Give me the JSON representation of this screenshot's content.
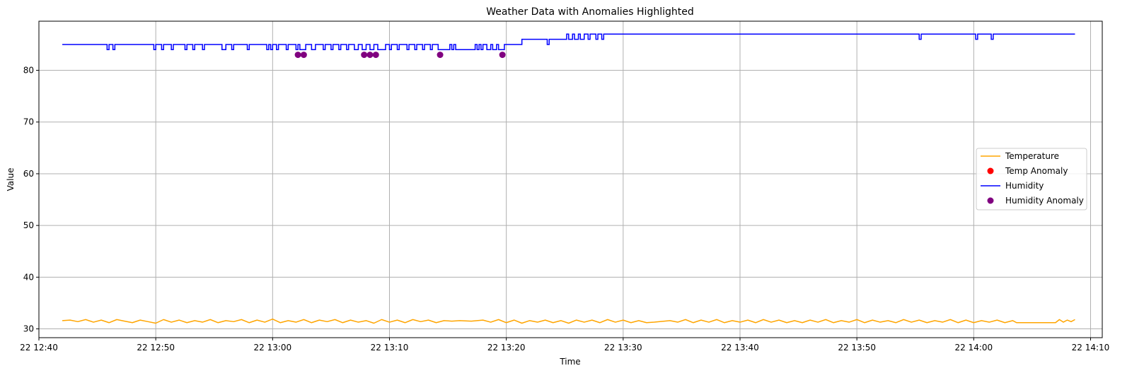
{
  "chart_data": {
    "type": "line",
    "title": "Weather Data with Anomalies Highlighted",
    "xlabel": "Time",
    "ylabel": "Value",
    "x_time_range": [
      "12:40:00",
      "14:11:00"
    ],
    "ylim": [
      28.3,
      89.5
    ],
    "x_ticks": [
      {
        "time": "12:40",
        "label": "22 12:40"
      },
      {
        "time": "12:50",
        "label": "22 12:50"
      },
      {
        "time": "13:00",
        "label": "22 13:00"
      },
      {
        "time": "13:10",
        "label": "22 13:10"
      },
      {
        "time": "13:20",
        "label": "22 13:20"
      },
      {
        "time": "13:30",
        "label": "22 13:30"
      },
      {
        "time": "13:40",
        "label": "22 13:40"
      },
      {
        "time": "13:50",
        "label": "22 13:50"
      },
      {
        "time": "14:00",
        "label": "22 14:00"
      },
      {
        "time": "14:10",
        "label": "22 14:10"
      }
    ],
    "y_ticks": [
      30,
      40,
      50,
      60,
      70,
      80
    ],
    "grid": true,
    "legend_position": "center-right",
    "series": [
      {
        "name": "Temperature",
        "kind": "line",
        "color": "#ffa500",
        "points": [
          [
            "12:42:00",
            31.6
          ],
          [
            "12:42:40",
            31.7
          ],
          [
            "12:43:20",
            31.4
          ],
          [
            "12:44:00",
            31.8
          ],
          [
            "12:44:40",
            31.3
          ],
          [
            "12:45:20",
            31.7
          ],
          [
            "12:46:00",
            31.2
          ],
          [
            "12:46:40",
            31.8
          ],
          [
            "12:47:20",
            31.5
          ],
          [
            "12:48:00",
            31.2
          ],
          [
            "12:48:40",
            31.7
          ],
          [
            "12:49:20",
            31.4
          ],
          [
            "12:50:00",
            31.1
          ],
          [
            "12:50:40",
            31.8
          ],
          [
            "12:51:20",
            31.3
          ],
          [
            "12:52:00",
            31.7
          ],
          [
            "12:52:40",
            31.2
          ],
          [
            "12:53:20",
            31.6
          ],
          [
            "12:54:00",
            31.3
          ],
          [
            "12:54:40",
            31.8
          ],
          [
            "12:55:20",
            31.2
          ],
          [
            "12:56:00",
            31.6
          ],
          [
            "12:56:40",
            31.4
          ],
          [
            "12:57:20",
            31.8
          ],
          [
            "12:58:00",
            31.2
          ],
          [
            "12:58:40",
            31.7
          ],
          [
            "12:59:20",
            31.3
          ],
          [
            "13:00:00",
            31.9
          ],
          [
            "13:00:40",
            31.2
          ],
          [
            "13:01:20",
            31.6
          ],
          [
            "13:02:00",
            31.3
          ],
          [
            "13:02:40",
            31.8
          ],
          [
            "13:03:20",
            31.2
          ],
          [
            "13:04:00",
            31.7
          ],
          [
            "13:04:40",
            31.4
          ],
          [
            "13:05:20",
            31.8
          ],
          [
            "13:06:00",
            31.2
          ],
          [
            "13:06:40",
            31.7
          ],
          [
            "13:07:20",
            31.3
          ],
          [
            "13:08:00",
            31.6
          ],
          [
            "13:08:40",
            31.1
          ],
          [
            "13:09:20",
            31.8
          ],
          [
            "13:10:00",
            31.3
          ],
          [
            "13:10:40",
            31.7
          ],
          [
            "13:11:20",
            31.2
          ],
          [
            "13:12:00",
            31.8
          ],
          [
            "13:12:40",
            31.4
          ],
          [
            "13:13:20",
            31.7
          ],
          [
            "13:14:00",
            31.2
          ],
          [
            "13:14:40",
            31.6
          ],
          [
            "13:15:20",
            31.5
          ],
          [
            "13:16:00",
            31.6
          ],
          [
            "13:17:00",
            31.5
          ],
          [
            "13:18:00",
            31.7
          ],
          [
            "13:18:40",
            31.3
          ],
          [
            "13:19:20",
            31.8
          ],
          [
            "13:20:00",
            31.2
          ],
          [
            "13:20:40",
            31.7
          ],
          [
            "13:21:20",
            31.1
          ],
          [
            "13:22:00",
            31.6
          ],
          [
            "13:22:40",
            31.3
          ],
          [
            "13:23:20",
            31.7
          ],
          [
            "13:24:00",
            31.2
          ],
          [
            "13:24:40",
            31.6
          ],
          [
            "13:25:20",
            31.1
          ],
          [
            "13:26:00",
            31.7
          ],
          [
            "13:26:40",
            31.3
          ],
          [
            "13:27:20",
            31.7
          ],
          [
            "13:28:00",
            31.2
          ],
          [
            "13:28:40",
            31.8
          ],
          [
            "13:29:20",
            31.3
          ],
          [
            "13:30:00",
            31.7
          ],
          [
            "13:30:40",
            31.2
          ],
          [
            "13:31:20",
            31.6
          ],
          [
            "13:32:00",
            31.2
          ],
          [
            "13:32:40",
            31.3
          ],
          [
            "13:34:00",
            31.6
          ],
          [
            "13:34:40",
            31.3
          ],
          [
            "13:35:20",
            31.8
          ],
          [
            "13:36:00",
            31.2
          ],
          [
            "13:36:40",
            31.7
          ],
          [
            "13:37:20",
            31.3
          ],
          [
            "13:38:00",
            31.8
          ],
          [
            "13:38:40",
            31.2
          ],
          [
            "13:39:20",
            31.6
          ],
          [
            "13:40:00",
            31.3
          ],
          [
            "13:40:40",
            31.7
          ],
          [
            "13:41:20",
            31.2
          ],
          [
            "13:42:00",
            31.8
          ],
          [
            "13:42:40",
            31.3
          ],
          [
            "13:43:20",
            31.7
          ],
          [
            "13:44:00",
            31.2
          ],
          [
            "13:44:40",
            31.6
          ],
          [
            "13:45:20",
            31.2
          ],
          [
            "13:46:00",
            31.7
          ],
          [
            "13:46:40",
            31.3
          ],
          [
            "13:47:20",
            31.8
          ],
          [
            "13:48:00",
            31.2
          ],
          [
            "13:48:40",
            31.6
          ],
          [
            "13:49:20",
            31.3
          ],
          [
            "13:50:00",
            31.8
          ],
          [
            "13:50:40",
            31.2
          ],
          [
            "13:51:20",
            31.7
          ],
          [
            "13:52:00",
            31.3
          ],
          [
            "13:52:40",
            31.6
          ],
          [
            "13:53:20",
            31.2
          ],
          [
            "13:54:00",
            31.8
          ],
          [
            "13:54:40",
            31.3
          ],
          [
            "13:55:20",
            31.7
          ],
          [
            "13:56:00",
            31.2
          ],
          [
            "13:56:40",
            31.6
          ],
          [
            "13:57:20",
            31.3
          ],
          [
            "13:58:00",
            31.8
          ],
          [
            "13:58:40",
            31.2
          ],
          [
            "13:59:20",
            31.7
          ],
          [
            "14:00:00",
            31.2
          ],
          [
            "14:00:40",
            31.6
          ],
          [
            "14:01:20",
            31.3
          ],
          [
            "14:02:00",
            31.7
          ],
          [
            "14:02:40",
            31.2
          ],
          [
            "14:03:20",
            31.6
          ],
          [
            "14:03:40",
            31.2
          ],
          [
            "14:05:00",
            31.2
          ],
          [
            "14:07:00",
            31.2
          ],
          [
            "14:07:20",
            31.8
          ],
          [
            "14:07:40",
            31.3
          ],
          [
            "14:08:00",
            31.7
          ],
          [
            "14:08:20",
            31.4
          ],
          [
            "14:08:40",
            31.8
          ]
        ]
      },
      {
        "name": "Temp Anomaly",
        "kind": "scatter",
        "color": "#ff0000",
        "points": []
      },
      {
        "name": "Humidity",
        "kind": "step",
        "color": "#0000ff",
        "points": [
          [
            "12:42:00",
            85
          ],
          [
            "12:45:40",
            85
          ],
          [
            "12:45:50",
            84
          ],
          [
            "12:46:00",
            85
          ],
          [
            "12:46:20",
            84
          ],
          [
            "12:46:30",
            85
          ],
          [
            "12:49:40",
            85
          ],
          [
            "12:49:50",
            84
          ],
          [
            "12:50:00",
            85
          ],
          [
            "12:50:30",
            84
          ],
          [
            "12:50:40",
            85
          ],
          [
            "12:51:20",
            84
          ],
          [
            "12:51:30",
            85
          ],
          [
            "12:52:30",
            84
          ],
          [
            "12:52:40",
            85
          ],
          [
            "12:53:10",
            84
          ],
          [
            "12:53:20",
            85
          ],
          [
            "12:54:00",
            84
          ],
          [
            "12:54:10",
            85
          ],
          [
            "12:55:40",
            84
          ],
          [
            "12:56:00",
            85
          ],
          [
            "12:56:30",
            84
          ],
          [
            "12:56:40",
            85
          ],
          [
            "12:57:50",
            84
          ],
          [
            "12:58:00",
            85
          ],
          [
            "12:59:30",
            84
          ],
          [
            "12:59:40",
            85
          ],
          [
            "12:59:50",
            84
          ],
          [
            "13:00:00",
            85
          ],
          [
            "13:00:20",
            84
          ],
          [
            "13:00:30",
            85
          ],
          [
            "13:01:10",
            84
          ],
          [
            "13:01:20",
            85
          ],
          [
            "13:02:00",
            84
          ],
          [
            "13:02:10",
            85
          ],
          [
            "13:02:20",
            84
          ],
          [
            "13:02:50",
            85
          ],
          [
            "13:03:20",
            84
          ],
          [
            "13:03:40",
            85
          ],
          [
            "13:04:20",
            84
          ],
          [
            "13:04:30",
            85
          ],
          [
            "13:05:00",
            84
          ],
          [
            "13:05:10",
            85
          ],
          [
            "13:05:40",
            84
          ],
          [
            "13:05:50",
            85
          ],
          [
            "13:06:20",
            84
          ],
          [
            "13:06:30",
            85
          ],
          [
            "13:07:00",
            84
          ],
          [
            "13:07:20",
            85
          ],
          [
            "13:07:40",
            84
          ],
          [
            "13:08:00",
            85
          ],
          [
            "13:08:20",
            84
          ],
          [
            "13:08:40",
            85
          ],
          [
            "13:09:00",
            84
          ],
          [
            "13:09:40",
            85
          ],
          [
            "13:10:00",
            84
          ],
          [
            "13:10:10",
            85
          ],
          [
            "13:10:40",
            84
          ],
          [
            "13:10:50",
            85
          ],
          [
            "13:11:30",
            84
          ],
          [
            "13:11:40",
            85
          ],
          [
            "13:12:10",
            84
          ],
          [
            "13:12:20",
            85
          ],
          [
            "13:12:50",
            84
          ],
          [
            "13:13:00",
            85
          ],
          [
            "13:13:30",
            84
          ],
          [
            "13:13:40",
            85
          ],
          [
            "13:14:10",
            84
          ],
          [
            "13:15:10",
            85
          ],
          [
            "13:15:20",
            84
          ],
          [
            "13:15:30",
            85
          ],
          [
            "13:15:40",
            84
          ],
          [
            "13:16:20",
            84
          ],
          [
            "13:17:10",
            84
          ],
          [
            "13:17:20",
            85
          ],
          [
            "13:17:30",
            84
          ],
          [
            "13:17:40",
            85
          ],
          [
            "13:17:50",
            84
          ],
          [
            "13:18:00",
            85
          ],
          [
            "13:18:20",
            84
          ],
          [
            "13:18:40",
            85
          ],
          [
            "13:18:50",
            84
          ],
          [
            "13:19:10",
            85
          ],
          [
            "13:19:20",
            84
          ],
          [
            "13:19:40",
            84
          ],
          [
            "13:19:50",
            85
          ],
          [
            "13:20:40",
            85
          ],
          [
            "13:21:20",
            86
          ],
          [
            "13:23:20",
            86
          ],
          [
            "13:23:30",
            85
          ],
          [
            "13:23:40",
            86
          ],
          [
            "13:25:00",
            86
          ],
          [
            "13:25:10",
            87
          ],
          [
            "13:25:20",
            86
          ],
          [
            "13:25:40",
            87
          ],
          [
            "13:25:50",
            86
          ],
          [
            "13:26:10",
            87
          ],
          [
            "13:26:20",
            86
          ],
          [
            "13:26:40",
            87
          ],
          [
            "13:27:00",
            86
          ],
          [
            "13:27:10",
            87
          ],
          [
            "13:27:40",
            86
          ],
          [
            "13:27:50",
            87
          ],
          [
            "13:28:10",
            86
          ],
          [
            "13:28:20",
            87
          ],
          [
            "13:55:10",
            87
          ],
          [
            "13:55:20",
            86
          ],
          [
            "13:55:30",
            87
          ],
          [
            "14:00:00",
            87
          ],
          [
            "14:00:10",
            86
          ],
          [
            "14:00:20",
            87
          ],
          [
            "14:01:20",
            87
          ],
          [
            "14:01:30",
            86
          ],
          [
            "14:01:40",
            87
          ],
          [
            "14:08:40",
            87
          ]
        ]
      },
      {
        "name": "Humidity Anomaly",
        "kind": "scatter",
        "color": "#800080",
        "points": [
          [
            "13:02:10",
            83
          ],
          [
            "13:02:40",
            83
          ],
          [
            "13:07:50",
            83
          ],
          [
            "13:08:20",
            83
          ],
          [
            "13:08:50",
            83
          ],
          [
            "13:14:20",
            83
          ],
          [
            "13:19:40",
            83
          ]
        ]
      }
    ]
  }
}
